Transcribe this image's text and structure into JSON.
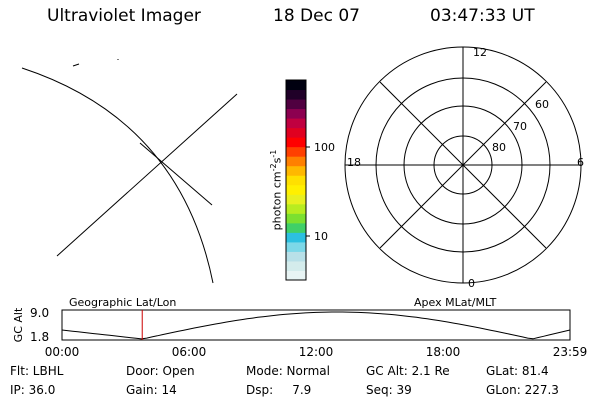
{
  "header": {
    "instrument": "Ultraviolet Imager",
    "date": "18 Dec 07",
    "time": "03:47:33 UT"
  },
  "colorbar": {
    "label": "photon cm",
    "label_sup1": "-2",
    "label_mid": "s",
    "label_sup2": "-1",
    "tick_100": "100",
    "tick_10": "10",
    "colors": [
      "#e8f4f4",
      "#d4ecec",
      "#b8e0e8",
      "#7cd8e8",
      "#2cc0e0",
      "#40d068",
      "#7ce030",
      "#b8ec20",
      "#e8f020",
      "#fff000",
      "#ffe000",
      "#ffb800",
      "#ff8000",
      "#ff4000",
      "#ff0000",
      "#e00020",
      "#c00040",
      "#8c0050",
      "#500040",
      "#200028",
      "#000010"
    ]
  },
  "polar": {
    "labels": {
      "top": "12",
      "bottom": "0",
      "left": "18",
      "right": "6"
    },
    "lat_labels": [
      "60",
      "70",
      "80"
    ]
  },
  "timeline": {
    "left_label": "Geographic Lat/Lon",
    "right_label": "Apex  MLat/MLT",
    "axis_title": "GC Alt",
    "y_ticks": [
      "9.0",
      "1.8"
    ],
    "x_ticks": [
      "00:00",
      "06:00",
      "12:00",
      "18:00",
      "23:59"
    ],
    "marker_time_hours": 3.79,
    "marker_color": "#cc0000"
  },
  "info": {
    "flt": "Flt: LBHL",
    "door": "Door: Open",
    "mode": "Mode: Normal",
    "gcalt": "GC Alt: 2.1 Re",
    "glat": "GLat: 81.4",
    "ip": "IP: 36.0",
    "gain": "Gain: 14",
    "dsp": "Dsp:     7.9",
    "seq": "Seq: 39",
    "glon": "GLon: 227.3"
  }
}
